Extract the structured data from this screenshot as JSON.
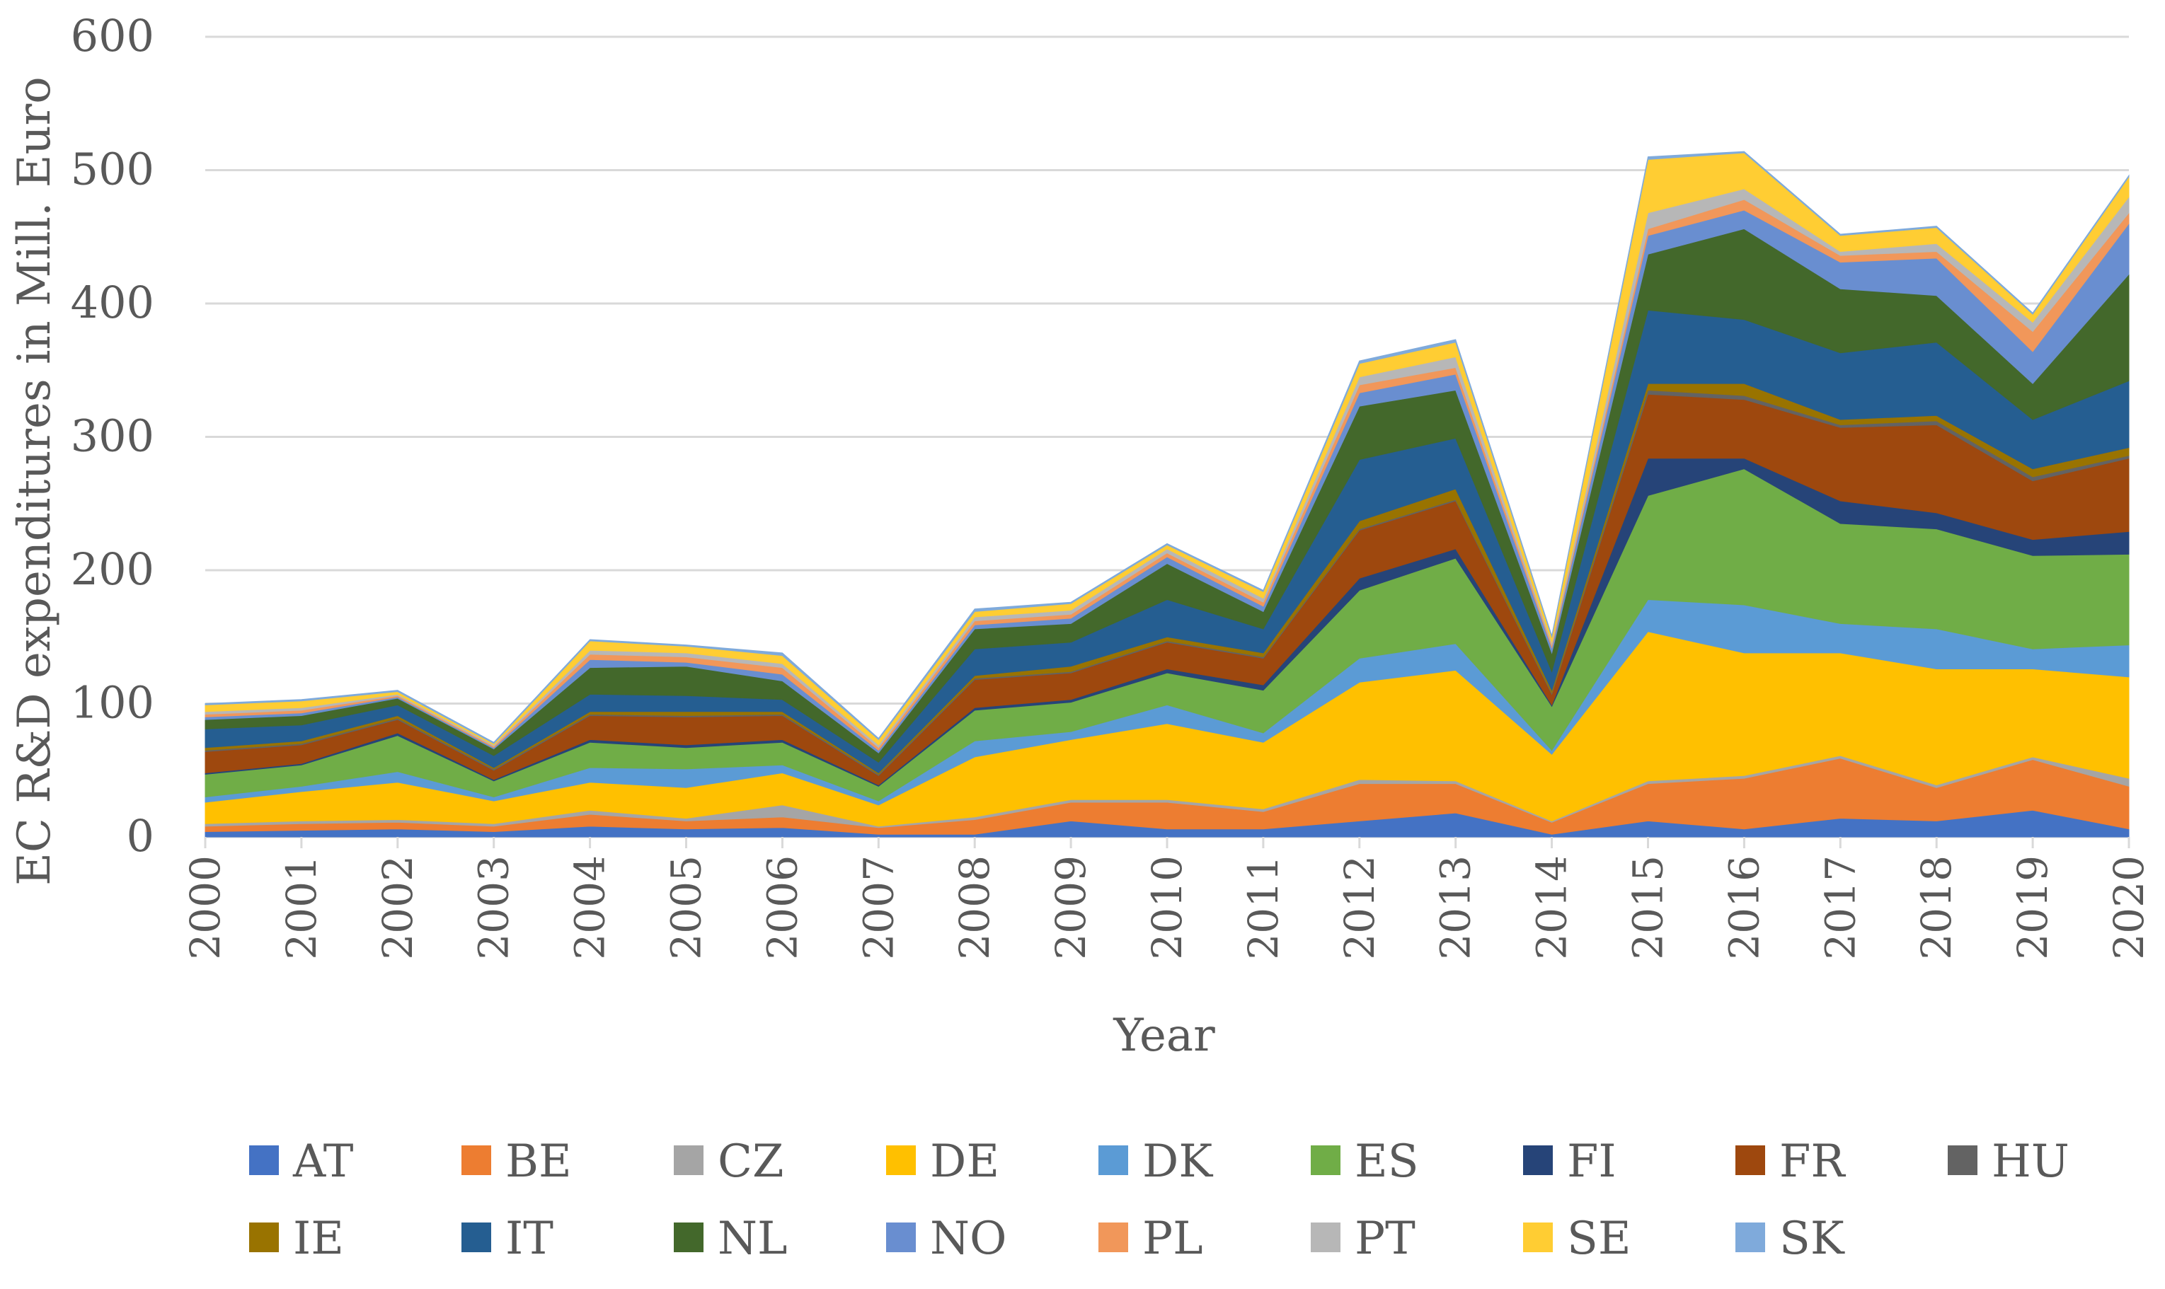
{
  "chart_data": {
    "type": "area",
    "stacked": true,
    "title": "",
    "xlabel": "Year",
    "ylabel": "EC R&D expenditures in Mill. Euro",
    "ylim": [
      0,
      600
    ],
    "yticks": [
      "0",
      "100",
      "200",
      "300",
      "400",
      "500",
      "600"
    ],
    "x": [
      "2000",
      "2001",
      "2002",
      "2003",
      "2004",
      "2005",
      "2006",
      "2007",
      "2008",
      "2009",
      "2010",
      "2011",
      "2012",
      "2013",
      "2014",
      "2015",
      "2016",
      "2017",
      "2018",
      "2019",
      "2020"
    ],
    "grid": "horizontal",
    "legend_position": "bottom",
    "series": [
      {
        "name": "AT",
        "color": "#4472C4",
        "values": [
          4,
          5,
          6,
          4,
          8,
          6,
          7,
          2,
          2,
          12,
          6,
          6,
          12,
          18,
          2,
          12,
          6,
          14,
          12,
          20,
          6
        ]
      },
      {
        "name": "BE",
        "color": "#ED7D31",
        "values": [
          4,
          5,
          5,
          4,
          9,
          6,
          8,
          5,
          11,
          14,
          20,
          13,
          28,
          22,
          9,
          28,
          38,
          45,
          25,
          38,
          32
        ]
      },
      {
        "name": "CZ",
        "color": "#A5A5A5",
        "values": [
          2,
          2,
          2,
          2,
          3,
          2,
          9,
          1,
          2,
          2,
          2,
          2,
          3,
          2,
          1,
          2,
          2,
          2,
          2,
          2,
          6
        ]
      },
      {
        "name": "DE",
        "color": "#FFC000",
        "values": [
          16,
          22,
          28,
          17,
          21,
          23,
          24,
          16,
          45,
          45,
          57,
          50,
          73,
          83,
          50,
          112,
          92,
          77,
          87,
          66,
          76
        ]
      },
      {
        "name": "DK",
        "color": "#5B9BD5",
        "values": [
          4,
          4,
          8,
          3,
          11,
          14,
          6,
          3,
          12,
          6,
          14,
          7,
          18,
          20,
          3,
          24,
          36,
          22,
          30,
          15,
          24
        ]
      },
      {
        "name": "ES",
        "color": "#70AD47",
        "values": [
          17,
          16,
          27,
          12,
          19,
          16,
          17,
          11,
          23,
          22,
          24,
          32,
          51,
          64,
          33,
          78,
          102,
          75,
          75,
          70,
          68
        ]
      },
      {
        "name": "FI",
        "color": "#264478",
        "values": [
          1,
          1,
          2,
          1,
          2,
          2,
          2,
          1,
          2,
          2,
          3,
          4,
          9,
          7,
          1,
          28,
          8,
          17,
          12,
          12,
          17
        ]
      },
      {
        "name": "FR",
        "color": "#9E480E",
        "values": [
          16,
          14,
          10,
          7,
          18,
          21,
          18,
          7,
          21,
          20,
          20,
          20,
          36,
          36,
          8,
          48,
          44,
          55,
          66,
          44,
          55
        ]
      },
      {
        "name": "HU",
        "color": "#636363",
        "values": [
          1,
          1,
          1,
          1,
          1,
          1,
          1,
          1,
          1,
          1,
          1,
          1,
          1,
          1,
          1,
          3,
          3,
          2,
          3,
          3,
          2
        ]
      },
      {
        "name": "IE",
        "color": "#997300",
        "values": [
          2,
          2,
          2,
          1,
          2,
          3,
          2,
          1,
          2,
          4,
          3,
          3,
          6,
          8,
          2,
          5,
          9,
          4,
          4,
          6,
          6
        ]
      },
      {
        "name": "IT",
        "color": "#255E91",
        "values": [
          14,
          12,
          8,
          9,
          13,
          12,
          9,
          8,
          20,
          18,
          28,
          18,
          46,
          38,
          14,
          55,
          48,
          50,
          55,
          37,
          50
        ]
      },
      {
        "name": "NL",
        "color": "#43682B",
        "values": [
          7,
          7,
          5,
          5,
          20,
          22,
          14,
          7,
          15,
          14,
          27,
          13,
          40,
          36,
          14,
          42,
          68,
          48,
          35,
          27,
          80
        ]
      },
      {
        "name": "NO",
        "color": "#698ED0",
        "values": [
          2,
          2,
          1,
          1,
          6,
          3,
          5,
          2,
          3,
          4,
          5,
          4,
          10,
          12,
          4,
          14,
          14,
          20,
          28,
          24,
          38
        ]
      },
      {
        "name": "PL",
        "color": "#F1975A",
        "values": [
          2,
          2,
          1,
          1,
          4,
          4,
          5,
          2,
          3,
          3,
          3,
          3,
          6,
          5,
          2,
          5,
          8,
          5,
          5,
          15,
          8
        ]
      },
      {
        "name": "PT",
        "color": "#B7B7B7",
        "values": [
          2,
          2,
          1,
          1,
          3,
          3,
          3,
          2,
          3,
          3,
          3,
          3,
          6,
          8,
          2,
          12,
          8,
          3,
          6,
          7,
          12
        ]
      },
      {
        "name": "SE",
        "color": "#FFCD33",
        "values": [
          5,
          5,
          2,
          1,
          7,
          5,
          6,
          4,
          4,
          5,
          3,
          5,
          10,
          11,
          4,
          40,
          27,
          12,
          12,
          6,
          15
        ]
      },
      {
        "name": "SK",
        "color": "#7FAADB",
        "values": [
          1,
          1,
          1,
          1,
          1,
          1,
          2,
          1,
          2,
          1,
          1,
          1,
          2,
          2,
          1,
          2,
          1,
          1,
          1,
          1,
          1
        ]
      }
    ]
  }
}
